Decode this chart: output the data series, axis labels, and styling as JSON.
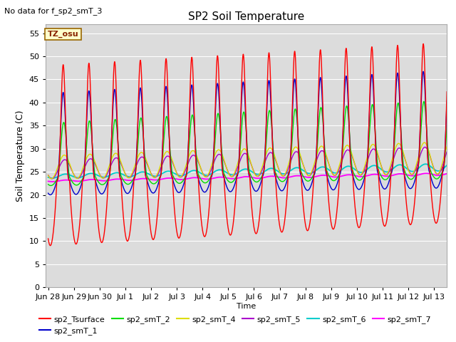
{
  "title": "SP2 Soil Temperature",
  "subtitle": "No data for f_sp2_smT_3",
  "xlabel": "Time",
  "ylabel": "Soil Temperature (C)",
  "ylim": [
    0,
    57
  ],
  "yticks": [
    0,
    5,
    10,
    15,
    20,
    25,
    30,
    35,
    40,
    45,
    50,
    55
  ],
  "tz_label": "TZ_osu",
  "bg_color": "#dcdcdc",
  "series_colors": {
    "sp2_Tsurface": "#ff0000",
    "sp2_smT_1": "#0000cc",
    "sp2_smT_2": "#00dd00",
    "sp2_smT_4": "#dddd00",
    "sp2_smT_5": "#aa00cc",
    "sp2_smT_6": "#00cccc",
    "sp2_smT_7": "#ff00ff"
  },
  "x_tick_labels": [
    "Jun 28",
    "Jun 29",
    "Jun 30",
    "Jul 1",
    "Jul 2",
    "Jul 3",
    "Jul 4",
    "Jul 5",
    "Jul 6",
    "Jul 7",
    "Jul 8",
    "Jul 9",
    "Jul 10",
    "Jul 11",
    "Jul 12",
    "Jul 13"
  ],
  "n_days": 15.5,
  "figsize": [
    6.4,
    4.8
  ],
  "dpi": 100
}
